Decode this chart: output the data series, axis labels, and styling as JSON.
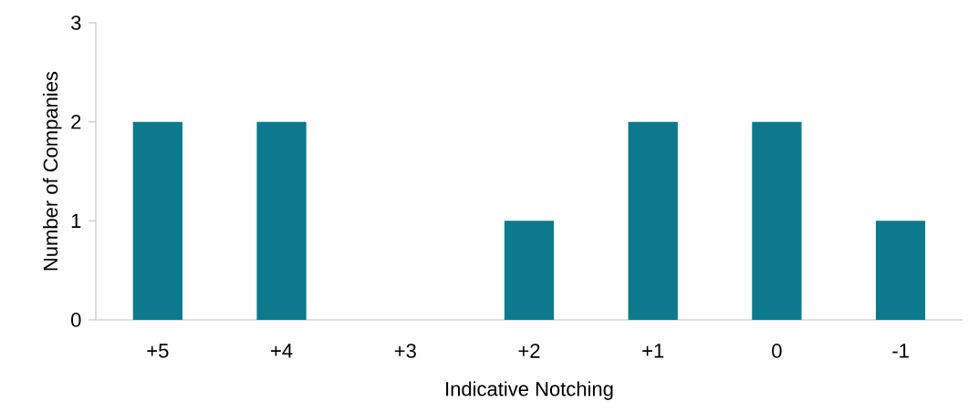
{
  "chart_data": {
    "type": "bar",
    "xlabel": "Indicative Notching",
    "ylabel": "Number of Companies",
    "categories": [
      "+5",
      "+4",
      "+3",
      "+2",
      "+1",
      "0",
      "-1"
    ],
    "values": [
      2,
      2,
      0,
      1,
      2,
      2,
      1
    ],
    "color": "#0c7a8c",
    "ylim": [
      0,
      3
    ],
    "yticks": [
      0,
      1,
      2,
      3
    ]
  }
}
